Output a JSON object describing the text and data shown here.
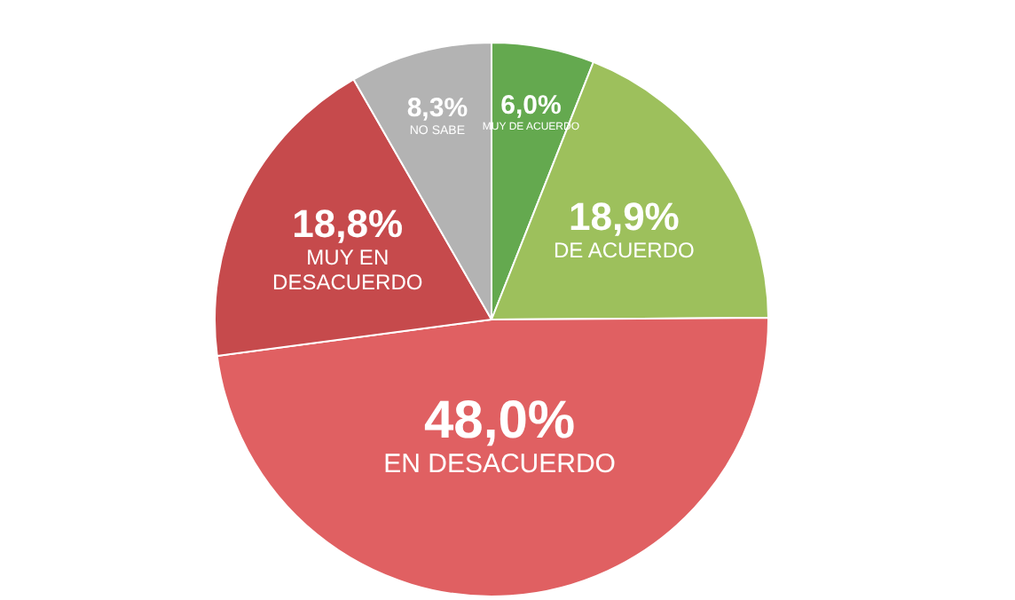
{
  "chart_data": {
    "type": "pie",
    "categories": [
      "MUY DE ACUERDO",
      "DE ACUERDO",
      "EN DESACUERDO",
      "MUY EN DESACUERDO",
      "NO SABE"
    ],
    "values": [
      6.0,
      18.9,
      48.0,
      18.8,
      8.3
    ],
    "value_labels": [
      "6,0%",
      "18,9%",
      "48,0%",
      "18,8%",
      "8,3%"
    ],
    "colors": [
      "#64a94f",
      "#9dc05c",
      "#e06062",
      "#c64a4c",
      "#b3b3b3"
    ]
  }
}
